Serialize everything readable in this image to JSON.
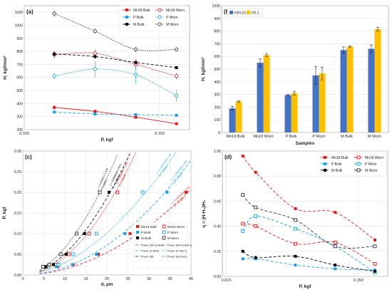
{
  "chart_data": [
    {
      "id": "a",
      "panel_label": "(a)",
      "type": "line",
      "xlabel": "P, kgf",
      "ylabel": "H, kgf/mm²",
      "xscale": "log",
      "xlim": [
        0.015,
        0.25
      ],
      "ylim": [
        200,
        1150
      ],
      "xticks": [
        0.015,
        0.15
      ],
      "xtick_labels": [
        "0.015",
        "0.150"
      ],
      "yticks": [
        200,
        300,
        400,
        500,
        600,
        700,
        800,
        900,
        1000,
        1100
      ],
      "grid": true,
      "legend_position": "top-right",
      "x": [
        0.025,
        0.05,
        0.1,
        0.2
      ],
      "series": [
        {
          "name": "Mn18 Bulk",
          "color": "#e41a1c",
          "marker": "square-filled",
          "dash": "solid",
          "values": [
            370,
            340,
            295,
            245
          ],
          "errors": [
            15,
            15,
            10,
            8
          ]
        },
        {
          "name": "Mn18 Worn",
          "color": "#e41a1c",
          "marker": "circle-open",
          "dash": "dotted",
          "values": [
            775,
            785,
            700,
            610
          ],
          "errors": [
            30,
            30,
            40,
            25
          ]
        },
        {
          "name": "P Bulk",
          "color": "#1ba1e2",
          "marker": "square-filled",
          "dash": "dashed",
          "values": [
            335,
            320,
            315,
            310
          ],
          "errors": [
            10,
            10,
            8,
            8
          ]
        },
        {
          "name": "P Worn",
          "color": "#1ba1e2",
          "marker": "circle-open",
          "dash": "dotted",
          "values": [
            610,
            665,
            620,
            460
          ],
          "errors": [
            25,
            60,
            70,
            45
          ]
        },
        {
          "name": "M Bulk",
          "color": "#000000",
          "marker": "square-filled",
          "dash": "dashed",
          "values": [
            780,
            760,
            715,
            675
          ],
          "errors": [
            20,
            15,
            15,
            10
          ]
        },
        {
          "name": "M Worn",
          "color": "#333333",
          "marker": "circle-open",
          "dash": "dotted",
          "values": [
            1090,
            955,
            815,
            815
          ],
          "errors": [
            25,
            20,
            20,
            15
          ]
        }
      ]
    },
    {
      "id": "b",
      "panel_label": "(b)",
      "type": "bar",
      "xlabel": "Samples",
      "ylabel": "H, kgf/mm²",
      "ylim": [
        0,
        1000
      ],
      "yticks": [
        0,
        100,
        200,
        300,
        400,
        500,
        600,
        700,
        800,
        900,
        1000
      ],
      "grid": true,
      "legend_position": "top-left",
      "categories": [
        "Mn18 Bulk",
        "Mn18 Worn",
        "P Bulk",
        "P Worn",
        "M Bulk",
        "M Worn"
      ],
      "series": [
        {
          "name": "H(N-G)",
          "color": "#4472c4",
          "values": [
            190,
            550,
            295,
            450,
            650,
            660
          ],
          "errors": [
            15,
            30,
            5,
            70,
            25,
            30
          ]
        },
        {
          "name": "H0.2",
          "color": "#ffc000",
          "values": [
            245,
            610,
            310,
            465,
            678,
            815
          ],
          "errors": [
            5,
            10,
            15,
            50,
            5,
            15
          ]
        }
      ]
    },
    {
      "id": "c",
      "panel_label": "(c)",
      "type": "scatter",
      "xlabel": "d, µm",
      "ylabel": "P, kgf",
      "xlim": [
        0,
        40
      ],
      "ylim": [
        0,
        0.3
      ],
      "xticks": [
        0,
        5,
        10,
        15,
        20,
        25,
        30,
        35,
        40
      ],
      "yticks": [
        0,
        0.05,
        0.1,
        0.15,
        0.2,
        0.25,
        0.3
      ],
      "ytick_labels": [
        "0.00",
        "0.05",
        "0.10",
        "0.15",
        "0.20",
        "0.25",
        "0.30"
      ],
      "grid": true,
      "legend_position": "bottom-right",
      "series": [
        {
          "name": "Mn18 Bulk",
          "color": "#e41a1c",
          "marker": "square-filled",
          "x": [
            8.3,
            12.0,
            18.0,
            25.5,
            38.8
          ],
          "y": [
            0.02,
            0.025,
            0.05,
            0.1,
            0.2
          ]
        },
        {
          "name": "Mn18 Worn",
          "color": "#e41a1c",
          "marker": "square-open",
          "x": [
            5.8,
            7.8,
            11.0,
            15.8,
            22.5
          ],
          "y": [
            0.02,
            0.025,
            0.05,
            0.1,
            0.2
          ]
        },
        {
          "name": "P Bulk",
          "color": "#1ba1e2",
          "marker": "square-filled",
          "x": [
            8.0,
            11.8,
            17.5,
            24.3,
            34.3
          ],
          "y": [
            0.02,
            0.025,
            0.05,
            0.1,
            0.2
          ]
        },
        {
          "name": "P Worn",
          "color": "#1ba1e2",
          "marker": "square-open",
          "x": [
            6.0,
            8.5,
            12.0,
            17.5,
            28.5
          ],
          "y": [
            0.02,
            0.025,
            0.05,
            0.1,
            0.2
          ]
        },
        {
          "name": "M Bulk",
          "color": "#000000",
          "marker": "square-filled",
          "x": [
            5.5,
            7.3,
            10.3,
            14.7,
            20.5
          ],
          "y": [
            0.02,
            0.025,
            0.05,
            0.1,
            0.2
          ]
        },
        {
          "name": "M Worn",
          "color": "#333333",
          "marker": "square-open",
          "x": [
            4.8,
            6.3,
            9.0,
            12.8,
            18.3
          ],
          "y": [
            0.02,
            0.025,
            0.05,
            0.1,
            0.2
          ]
        }
      ],
      "fits": [
        {
          "name": "Power (Mn18 Bulk)",
          "color": "#e41a1c",
          "dash": "dashed",
          "a": 0.000166,
          "n": 1.933,
          "equation": "y = 0.0001665x^1.933",
          "r2": "R² = 0.9955"
        },
        {
          "name": "Power (Mn18 Worn)",
          "color": "#e41a1c",
          "dash": "dotted",
          "a": 0.000496,
          "n": 1.942,
          "equation": "y = 0.000496x^1.942",
          "r2": "R² = 0.9955"
        },
        {
          "name": "Power (P Bulk)",
          "color": "#1ba1e2",
          "dash": "dashed",
          "a": 0.000205,
          "n": 1.955,
          "equation": "y = 0.0002049x^1.955",
          "r2": "R² = 0.9944"
        },
        {
          "name": "Power (P Worn)",
          "color": "#1ba1e2",
          "dash": "dotted",
          "a": 0.000476,
          "n": 1.79,
          "equation": "y = 0.0004762x^1.79",
          "r2": "R² = 0.9846"
        },
        {
          "name": "Power (M)",
          "color": "#000000",
          "dash": "dashed",
          "a": 0.000683,
          "n": 1.873,
          "equation": "y = 0.000683x^1.873",
          "r2": "R² = 0.9953"
        },
        {
          "name": "Power (M Worn)",
          "color": "#333333",
          "dash": "dotted",
          "a": 0.000987,
          "n": 1.826,
          "equation": "y = 0.000987x^1.826",
          "r2": "R² = 0.9969"
        }
      ]
    },
    {
      "id": "d",
      "panel_label": "(d)",
      "type": "line",
      "xlabel": "P, kgf",
      "ylabel": "η = (H-H₀)/H₀",
      "xscale": "log",
      "xlim": [
        0.014,
        0.25
      ],
      "ylim": [
        0,
        1.0
      ],
      "yticks": [
        0,
        0.2,
        0.4,
        0.6,
        0.8,
        1.0
      ],
      "ytick_labels": [
        "0.00",
        "0.20",
        "0.40",
        "0.60",
        "0.80",
        "1.00"
      ],
      "xticks": [
        0.015,
        0.15
      ],
      "xtick_labels": [
        "0.015",
        "0.150"
      ],
      "grid": true,
      "legend_position": "top-right",
      "x": [
        0.02,
        0.025,
        0.05,
        0.1,
        0.2
      ],
      "series": [
        {
          "name": "Mn18 Bulk",
          "color": "#e41a1c",
          "marker": "square-filled",
          "dash": "dashed",
          "values": [
            0.96,
            0.83,
            0.54,
            0.51,
            0.29
          ]
        },
        {
          "name": "Mn18 Worn",
          "color": "#e41a1c",
          "marker": "square-open",
          "dash": "dashed",
          "values": [
            0.42,
            0.4,
            0.26,
            0.27,
            0.1
          ]
        },
        {
          "name": "P Bulk",
          "color": "#1ba1e2",
          "marker": "square-filled",
          "dash": "dashed",
          "values": [
            0.14,
            0.14,
            0.09,
            0.06,
            0.05
          ]
        },
        {
          "name": "P Worn",
          "color": "#1ba1e2",
          "marker": "square-open",
          "dash": "dashed",
          "values": [
            0.36,
            0.48,
            0.38,
            0.24,
            0.03
          ]
        },
        {
          "name": "M Bulk",
          "color": "#000000",
          "marker": "square-filled",
          "dash": "dashed",
          "values": [
            0.2,
            0.15,
            0.16,
            0.09,
            0.04
          ]
        },
        {
          "name": "M Worn",
          "color": "#333333",
          "marker": "square-open",
          "dash": "dashed",
          "values": [
            0.65,
            0.55,
            0.45,
            0.24,
            0.24
          ]
        }
      ]
    }
  ]
}
